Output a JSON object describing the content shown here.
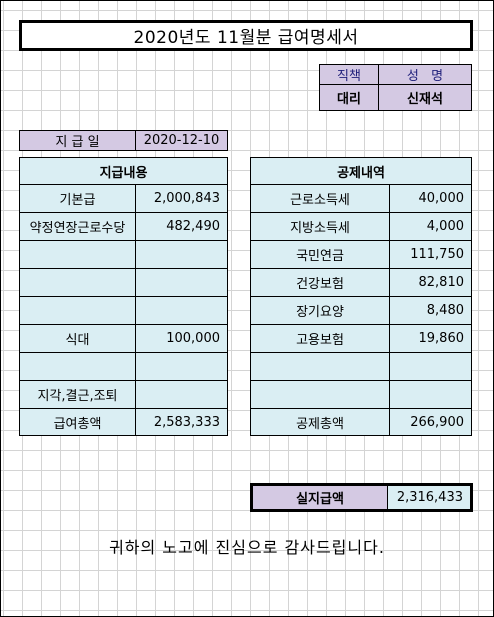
{
  "title": "2020년도 11월분 급여명세서",
  "employee": {
    "position_header": "직책",
    "name_header": "성   명",
    "position": "대리",
    "name": "신재석"
  },
  "pay_date": {
    "label": "지 급 일",
    "value": "2020-12-10"
  },
  "payments": {
    "header": "지급내용",
    "rows": [
      {
        "label": "기본급",
        "amount": "2,000,843"
      },
      {
        "label": "약정연장근로수당",
        "amount": "482,490"
      },
      {
        "label": "",
        "amount": ""
      },
      {
        "label": "",
        "amount": ""
      },
      {
        "label": "",
        "amount": ""
      },
      {
        "label": "식대",
        "amount": "100,000"
      },
      {
        "label": "",
        "amount": ""
      },
      {
        "label": "지각,결근,조퇴",
        "amount": ""
      },
      {
        "label": "급여총액",
        "amount": "2,583,333"
      }
    ]
  },
  "deductions": {
    "header": "공제내역",
    "rows": [
      {
        "label": "근로소득세",
        "amount": "40,000"
      },
      {
        "label": "지방소득세",
        "amount": "4,000"
      },
      {
        "label": "국민연금",
        "amount": "111,750"
      },
      {
        "label": "건강보험",
        "amount": "82,810"
      },
      {
        "label": "장기요양",
        "amount": "8,480"
      },
      {
        "label": "고용보험",
        "amount": "19,860"
      },
      {
        "label": "",
        "amount": ""
      },
      {
        "label": "",
        "amount": ""
      },
      {
        "label": "공제총액",
        "amount": "266,900"
      }
    ]
  },
  "net_pay": {
    "label": "실지급액",
    "amount": "2,316,433"
  },
  "thanks": "귀하의 노고에 진심으로 감사드립니다.",
  "colors": {
    "header_lavender": "#d4c9e3",
    "cell_blue": "#daeef3",
    "grid": "#d4d4d4"
  }
}
